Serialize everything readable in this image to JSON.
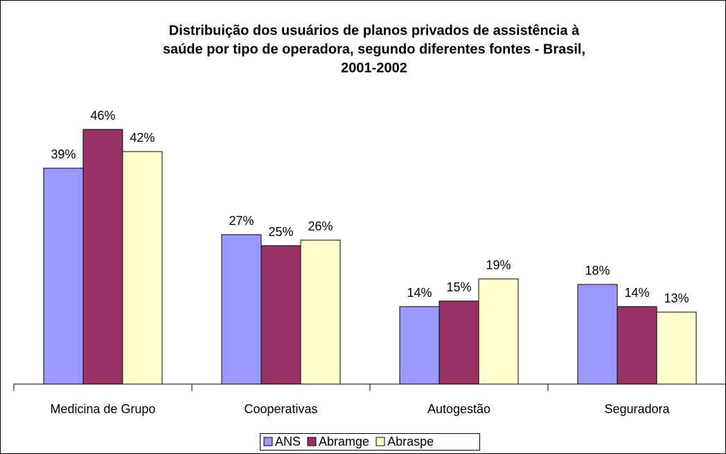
{
  "chart_data": {
    "type": "bar",
    "title": [
      "Distribuição dos usuários de planos privados de assistência à",
      "saúde por tipo de operadora, segundo diferentes fontes - Brasil,",
      "2001-2002"
    ],
    "categories": [
      "Medicina de Grupo",
      "Cooperativas",
      "Autogestão",
      "Seguradora"
    ],
    "series": [
      {
        "name": "ANS",
        "color": "#9999ff",
        "values": [
          39,
          27,
          14,
          18
        ],
        "value_labels": [
          "39%",
          "27%",
          "14%",
          "18%"
        ]
      },
      {
        "name": "Abramge",
        "color": "#993366",
        "values": [
          46,
          25,
          15,
          14
        ],
        "value_labels": [
          "46%",
          "25%",
          "15%",
          "14%"
        ]
      },
      {
        "name": "Abraspe",
        "color": "#ffffcc",
        "values": [
          42,
          26,
          19,
          13
        ],
        "value_labels": [
          "42%",
          "26%",
          "19%",
          "13%"
        ]
      }
    ],
    "ylim": [
      0,
      50
    ],
    "legend": "bottom"
  }
}
